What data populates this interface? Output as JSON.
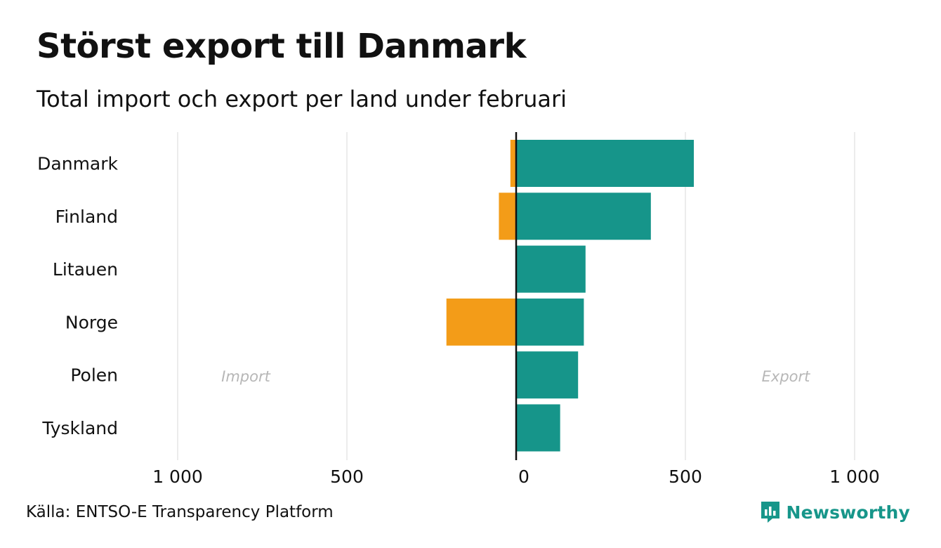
{
  "title": "Störst export till Danmark",
  "subtitle": "Total import och export per land under februari",
  "source": "Källa: ENTSO-E Transparency Platform",
  "logo_text": "Newsworthy",
  "chart_data": {
    "type": "bar",
    "orientation": "horizontal-diverging",
    "categories": [
      "Danmark",
      "Finland",
      "Litauen",
      "Norge",
      "Polen",
      "Tyskland"
    ],
    "series": [
      {
        "name": "Import",
        "values": [
          17,
          51,
          0,
          206,
          0,
          0
        ],
        "color": "#f39c18"
      },
      {
        "name": "Export",
        "values": [
          525,
          398,
          205,
          200,
          183,
          130
        ],
        "color": "#16958a"
      }
    ],
    "xlim": [
      -1000,
      1000
    ],
    "xticks": [
      -1000,
      -500,
      0,
      500,
      1000
    ],
    "xtick_labels": [
      "1 000",
      "500",
      "0",
      "500",
      "1 000"
    ],
    "direction_labels": {
      "left": "Import",
      "right": "Export"
    },
    "grid": "vertical",
    "zero_line_color": "#111111",
    "gridline_color": "#e5e5e5"
  }
}
